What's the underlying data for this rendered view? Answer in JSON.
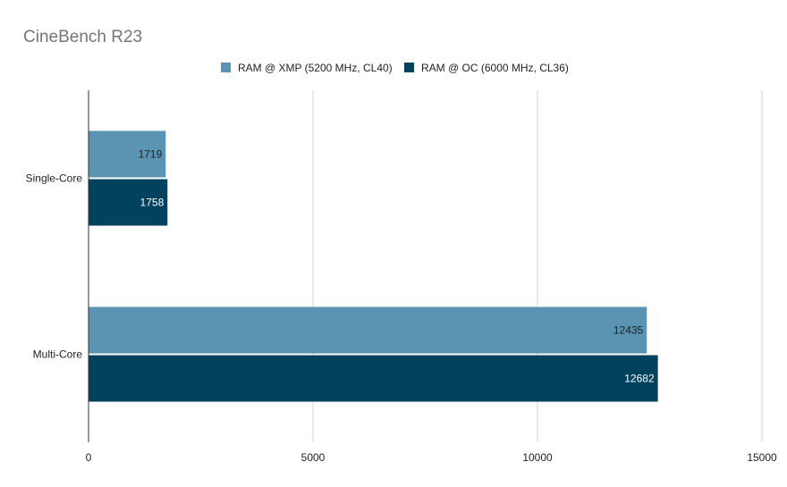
{
  "chart_data": {
    "type": "bar",
    "orientation": "horizontal",
    "title": "CineBench R23",
    "categories": [
      "Single-Core",
      "Multi-Core"
    ],
    "series": [
      {
        "name": "RAM @ XMP (5200 MHz, CL40)",
        "values": [
          1719,
          12435
        ],
        "color": "#5b93b2",
        "label_color": "#222222"
      },
      {
        "name": "RAM @ OC (6000 MHz, CL36)",
        "values": [
          1758,
          12682
        ],
        "color": "#03425f",
        "label_color": "#ffffff"
      }
    ],
    "x_ticks": [
      "0",
      "5000",
      "10000",
      "15000"
    ],
    "xlim": [
      0,
      15000
    ],
    "grid": true,
    "legend_position": "top",
    "data_labels": true
  }
}
